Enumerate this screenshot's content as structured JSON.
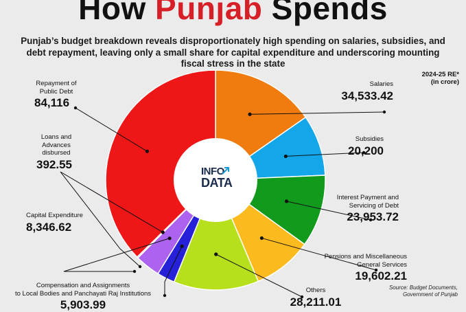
{
  "header": {
    "title_part1": "How ",
    "title_highlight": "Punjab",
    "title_part2": " Spends",
    "subtitle": "Punjab’s budget breakdown reveals disproportionately high spending on salaries, subsidies, and debt repayment, leaving only a small share for capital expenditure and underscoring mounting fiscal stress in the state",
    "period": "2024-25 RE*",
    "unit": "(in crore)"
  },
  "logo": {
    "line1": "INFO",
    "line2": "DATA",
    "arrow_icon": "arrow-icon"
  },
  "source": {
    "line1": "Source: Budget Documents,",
    "line2": "Government of Punjab"
  },
  "colors": {
    "title_highlight": "#d61f26",
    "background": "#ebebeb"
  },
  "chart_data": {
    "type": "pie",
    "variant": "donut",
    "start": "top",
    "direction": "clockwise",
    "slices": [
      {
        "name": "Salaries",
        "value": 34533.42,
        "label": "34,533.42",
        "color": "#f07c10"
      },
      {
        "name": "Subsidies",
        "value": 20200,
        "label": "20,200",
        "color": "#13a7ea"
      },
      {
        "name": "Interest Payment and Servicing of Debt",
        "value": 23953.72,
        "label": "23,953.72",
        "color": "#119a1c"
      },
      {
        "name": "Pensions and Miscellaneous General Services",
        "value": 19602.21,
        "label": "19,602.21",
        "color": "#fbba1d"
      },
      {
        "name": "Others",
        "value": 28211.01,
        "label": "28,211.01",
        "color": "#b6df1c"
      },
      {
        "name": "Compensation and Assignments to Local Bodies and Panchayati Raj Institutions",
        "value": 5903.99,
        "label": "5,903.99",
        "color": "#2620d8"
      },
      {
        "name": "Capital Expenditure",
        "value": 8346.62,
        "label": "8,346.62",
        "color": "#ad63ef"
      },
      {
        "name": "Loans and Advances disbursed",
        "value": 392.55,
        "label": "392.55",
        "color": "#7e57c2"
      },
      {
        "name": "Repayment of Public Debt",
        "value": 84116,
        "label": "84,116",
        "color": "#ee1616"
      }
    ],
    "labels": {
      "salaries": {
        "name": "Salaries",
        "value": "34,533.42"
      },
      "subsidies": {
        "name": "Subsidies",
        "value": "20,200"
      },
      "interest": {
        "name1": "Interest Payment and",
        "name2": "Servicing of Debt",
        "value": "23,953.72"
      },
      "pensions": {
        "name1": "Pensions and Miscellaneous",
        "name2": "General Services",
        "value": "19,602.21"
      },
      "others": {
        "name": "Others",
        "value": "28,211.01"
      },
      "compensation": {
        "name1": "Compensation and Assignments",
        "name2": "to Local Bodies and Panchayati Raj Institutions",
        "value": "5,903.99"
      },
      "capital": {
        "name": "Capital Expenditure",
        "value": "8,346.62"
      },
      "loans": {
        "name1": "Loans and",
        "name2": "Advances",
        "name3": "disbursed",
        "value": "392.55"
      },
      "repayment": {
        "name1": "Repayment of",
        "name2": "Public Debt",
        "value": "84,116"
      }
    }
  }
}
